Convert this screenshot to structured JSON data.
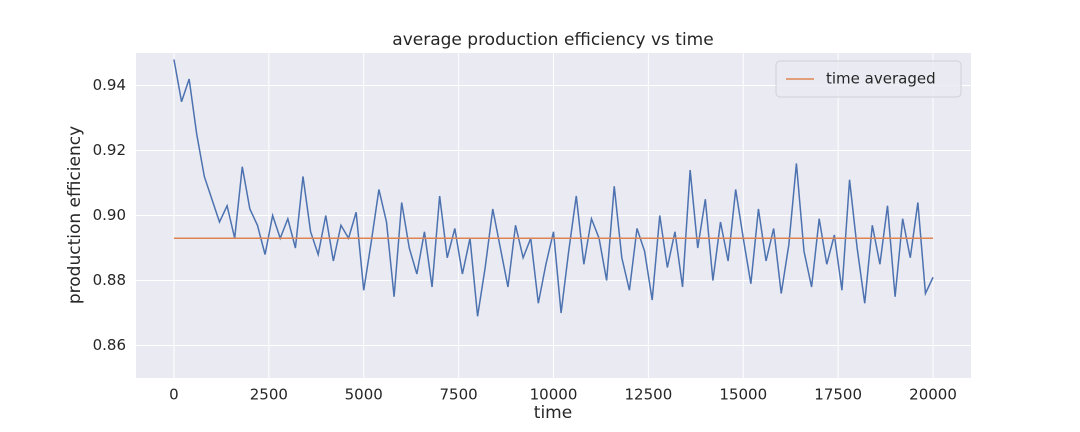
{
  "chart_data": {
    "type": "line",
    "title": "average production efficiency vs time",
    "xlabel": "time",
    "ylabel": "production efficiency",
    "x": [
      0,
      200,
      400,
      600,
      800,
      1000,
      1200,
      1400,
      1600,
      1800,
      2000,
      2200,
      2400,
      2600,
      2800,
      3000,
      3200,
      3400,
      3600,
      3800,
      4000,
      4200,
      4400,
      4600,
      4800,
      5000,
      5200,
      5400,
      5600,
      5800,
      6000,
      6200,
      6400,
      6600,
      6800,
      7000,
      7200,
      7400,
      7600,
      7800,
      8000,
      8200,
      8400,
      8600,
      8800,
      9000,
      9200,
      9400,
      9600,
      9800,
      10000,
      10200,
      10400,
      10600,
      10800,
      11000,
      11200,
      11400,
      11600,
      11800,
      12000,
      12200,
      12400,
      12600,
      12800,
      13000,
      13200,
      13400,
      13600,
      13800,
      14000,
      14200,
      14400,
      14600,
      14800,
      15000,
      15200,
      15400,
      15600,
      15800,
      16000,
      16200,
      16400,
      16600,
      16800,
      17000,
      17200,
      17400,
      17600,
      17800,
      18000,
      18200,
      18400,
      18600,
      18800,
      19000,
      19200,
      19400,
      19600,
      19800,
      20000
    ],
    "series": [
      {
        "color": "#4c72b0",
        "values": [
          0.948,
          0.935,
          0.942,
          0.925,
          0.912,
          0.905,
          0.898,
          0.903,
          0.893,
          0.915,
          0.902,
          0.897,
          0.888,
          0.9,
          0.893,
          0.899,
          0.89,
          0.912,
          0.895,
          0.888,
          0.9,
          0.886,
          0.897,
          0.893,
          0.901,
          0.877,
          0.892,
          0.908,
          0.898,
          0.875,
          0.904,
          0.89,
          0.882,
          0.895,
          0.878,
          0.906,
          0.887,
          0.896,
          0.882,
          0.893,
          0.869,
          0.884,
          0.902,
          0.89,
          0.878,
          0.897,
          0.887,
          0.893,
          0.873,
          0.885,
          0.895,
          0.87,
          0.889,
          0.906,
          0.885,
          0.899,
          0.893,
          0.88,
          0.909,
          0.887,
          0.877,
          0.896,
          0.889,
          0.874,
          0.9,
          0.884,
          0.895,
          0.878,
          0.914,
          0.89,
          0.905,
          0.88,
          0.898,
          0.886,
          0.908,
          0.893,
          0.879,
          0.902,
          0.886,
          0.896,
          0.876,
          0.891,
          0.916,
          0.889,
          0.878,
          0.899,
          0.885,
          0.894,
          0.877,
          0.911,
          0.89,
          0.873,
          0.897,
          0.885,
          0.903,
          0.875,
          0.899,
          0.887,
          0.904,
          0.876,
          0.881
        ]
      },
      {
        "name": "time averaged",
        "color": "#dd8452",
        "x": [
          0,
          20000
        ],
        "values": [
          0.893,
          0.893
        ]
      }
    ],
    "xlim": [
      -1000,
      21000
    ],
    "xticks": [
      0,
      2500,
      5000,
      7500,
      10000,
      12500,
      15000,
      17500,
      20000
    ],
    "ylim": [
      0.85,
      0.95
    ],
    "yticks": [
      0.86,
      0.88,
      {
        "value": 0.9,
        "label": "0.90"
      },
      0.92,
      0.94
    ],
    "grid": true,
    "legend": "upper right"
  }
}
